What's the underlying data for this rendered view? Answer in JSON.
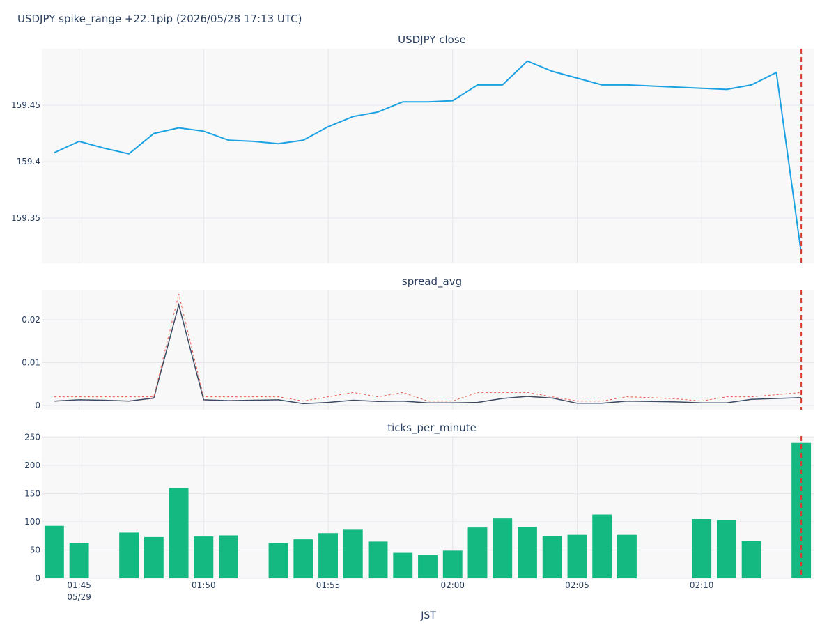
{
  "title": "USDJPY spike_range +22.1pip (2026/05/28 17:13 UTC)",
  "xlabel": "JST",
  "x_ticks": [
    {
      "label": "01:45",
      "sub": "05/29",
      "minute": 1
    },
    {
      "label": "01:50",
      "sub": "",
      "minute": 6
    },
    {
      "label": "01:55",
      "sub": "",
      "minute": 11
    },
    {
      "label": "02:00",
      "sub": "",
      "minute": 16
    },
    {
      "label": "02:05",
      "sub": "",
      "minute": 21
    },
    {
      "label": "02:10",
      "sub": "",
      "minute": 26
    }
  ],
  "colors": {
    "close": "#1ba1e2",
    "spread_avg": "#3d4a63",
    "spread_max": "#e8584a",
    "ticks": "#13b981",
    "event_line": "#d9382c",
    "plot_bg": "#f8f8f8",
    "grid": "#e3e6ec"
  },
  "chart_data": [
    {
      "type": "line",
      "subtitle": "USDJPY close",
      "ylim": [
        159.31,
        159.5
      ],
      "yticks": [
        159.35,
        159.4,
        159.45
      ],
      "ytick_labels": [
        "159.35",
        "159.4",
        "159.45"
      ],
      "series": [
        {
          "style": "solid",
          "x": [
            0,
            1,
            2,
            3,
            4,
            5,
            6,
            7,
            8,
            9,
            10,
            11,
            12,
            13,
            14,
            15,
            16,
            17,
            18,
            19,
            20,
            21,
            22,
            23,
            24,
            25,
            26,
            27,
            28,
            29,
            30
          ],
          "values": [
            159.408,
            159.418,
            159.412,
            159.407,
            159.425,
            159.43,
            159.427,
            159.419,
            159.418,
            159.416,
            159.419,
            159.431,
            159.44,
            159.444,
            159.453,
            159.453,
            159.454,
            159.468,
            159.468,
            159.489,
            159.48,
            159.474,
            159.468,
            159.468,
            159.467,
            159.466,
            159.465,
            159.464,
            159.468,
            159.479,
            159.319
          ]
        }
      ]
    },
    {
      "type": "line",
      "subtitle": "spread_avg",
      "ylim": [
        -0.001,
        0.027
      ],
      "yticks": [
        0,
        0.01,
        0.02
      ],
      "ytick_labels": [
        "0",
        "0.01",
        "0.02"
      ],
      "series": [
        {
          "style": "solid",
          "x": [
            0,
            1,
            2,
            3,
            4,
            5,
            6,
            7,
            8,
            9,
            10,
            11,
            12,
            13,
            14,
            15,
            16,
            17,
            18,
            19,
            20,
            21,
            22,
            23,
            24,
            25,
            26,
            27,
            28,
            29,
            30
          ],
          "values": [
            0.001,
            0.0013,
            0.0012,
            0.001,
            0.0017,
            0.0235,
            0.0013,
            0.0011,
            0.0012,
            0.0013,
            0.0004,
            0.0007,
            0.0012,
            0.0009,
            0.001,
            0.0006,
            0.0006,
            0.0007,
            0.0016,
            0.0021,
            0.0017,
            0.0005,
            0.0005,
            0.001,
            0.0009,
            0.0008,
            0.0006,
            0.0006,
            0.0014,
            0.0016,
            0.0018
          ]
        },
        {
          "style": "dotted",
          "x": [
            0,
            1,
            2,
            3,
            4,
            5,
            6,
            7,
            8,
            9,
            10,
            11,
            12,
            13,
            14,
            15,
            16,
            17,
            18,
            19,
            20,
            21,
            22,
            23,
            24,
            25,
            26,
            27,
            28,
            29,
            30
          ],
          "values": [
            0.002,
            0.002,
            0.002,
            0.002,
            0.002,
            0.026,
            0.002,
            0.002,
            0.002,
            0.002,
            0.001,
            0.002,
            0.003,
            0.002,
            0.003,
            0.001,
            0.001,
            0.003,
            0.003,
            0.003,
            0.002,
            0.001,
            0.001,
            0.002,
            0.0018,
            0.0015,
            0.001,
            0.002,
            0.002,
            0.0025,
            0.003
          ]
        }
      ]
    },
    {
      "type": "bar",
      "subtitle": "ticks_per_minute",
      "ylim": [
        0,
        252
      ],
      "yticks": [
        0,
        50,
        100,
        150,
        200,
        250
      ],
      "ytick_labels": [
        "0",
        "50",
        "100",
        "150",
        "200",
        "250"
      ],
      "x": [
        0,
        1,
        3,
        4,
        5,
        6,
        7,
        9,
        10,
        11,
        12,
        13,
        14,
        15,
        16,
        17,
        18,
        19,
        20,
        21,
        22,
        23,
        26,
        27,
        28,
        30
      ],
      "values": [
        93,
        63,
        81,
        73,
        160,
        74,
        76,
        62,
        69,
        80,
        86,
        65,
        45,
        41,
        49,
        90,
        106,
        91,
        75,
        77,
        113,
        77,
        105,
        103,
        66,
        240
      ]
    }
  ],
  "event_x": 30
}
